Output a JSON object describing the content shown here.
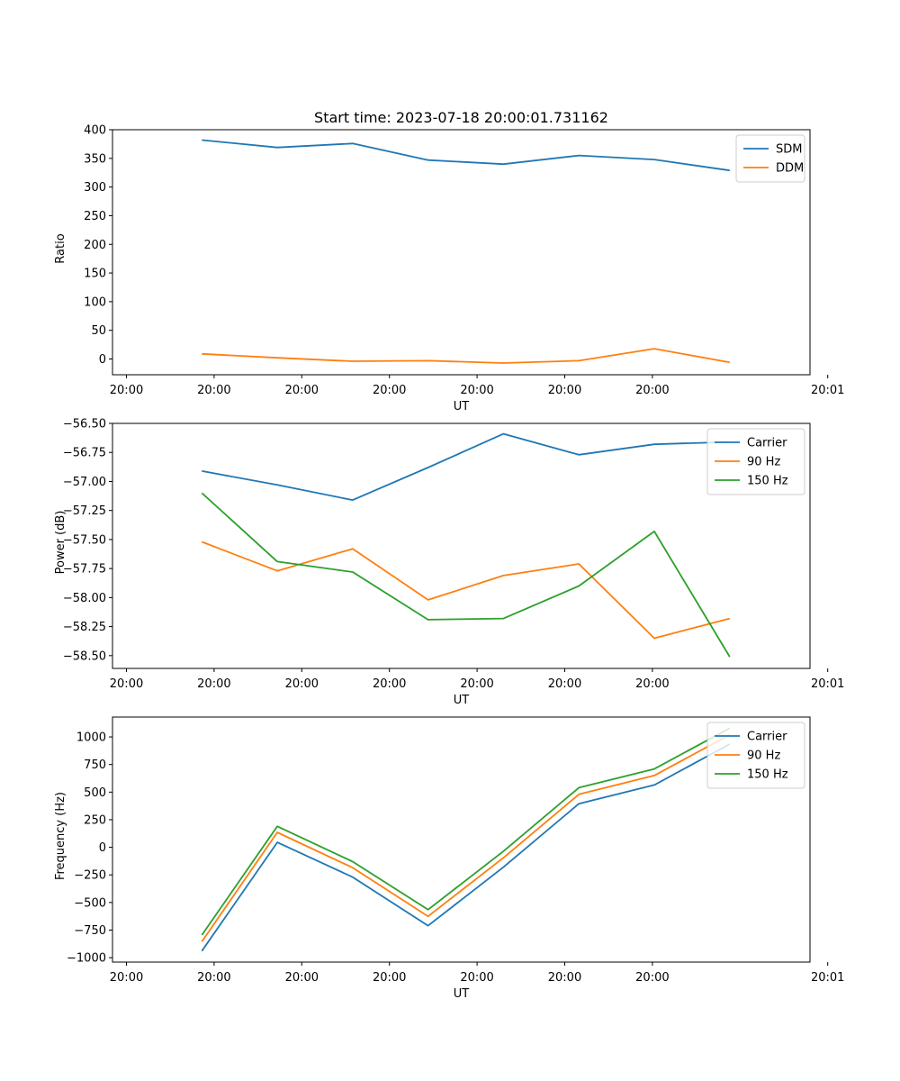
{
  "chart_data": [
    {
      "type": "line",
      "title": "Start time: 2023-07-18 20:00:01.731162",
      "xlabel": "UT",
      "ylabel": "Ratio",
      "x_tick_labels": [
        "20:00",
        "20:00",
        "20:00",
        "20:00",
        "20:00",
        "20:00",
        "20:00",
        "20:01"
      ],
      "x": [
        1,
        2,
        3,
        4,
        5,
        6,
        7,
        8
      ],
      "xlim": [
        -0.185,
        9.065
      ],
      "ylim": [
        -27.5,
        400
      ],
      "yticks": [
        0,
        50,
        100,
        150,
        200,
        250,
        300,
        350,
        400
      ],
      "legend": "top-right",
      "series": [
        {
          "name": "SDM",
          "color": "#1f77b4",
          "values": [
            382,
            369,
            376,
            347,
            340,
            355,
            348,
            329
          ]
        },
        {
          "name": "DDM",
          "color": "#ff7f0e",
          "values": [
            9,
            2,
            -4,
            -3,
            -7,
            -3,
            18,
            -6
          ]
        }
      ]
    },
    {
      "type": "line",
      "title": "",
      "xlabel": "UT",
      "ylabel": "Power (dB)",
      "x_tick_labels": [
        "20:00",
        "20:00",
        "20:00",
        "20:00",
        "20:00",
        "20:00",
        "20:00",
        "20:01"
      ],
      "x": [
        1,
        2,
        3,
        4,
        5,
        6,
        7,
        8
      ],
      "xlim": [
        -0.185,
        9.065
      ],
      "ylim": [
        -58.61,
        -56.5
      ],
      "yticks": [
        -58.5,
        -58.25,
        -58.0,
        -57.75,
        -57.5,
        -57.25,
        -57.0,
        -56.75,
        -56.5
      ],
      "ytick_labels": [
        "−58.50",
        "−58.25",
        "−58.00",
        "−57.75",
        "−57.50",
        "−57.25",
        "−57.00",
        "−56.75",
        "−56.50"
      ],
      "legend": "top-right",
      "series": [
        {
          "name": "Carrier",
          "color": "#1f77b4",
          "values": [
            -56.91,
            -57.03,
            -57.16,
            -56.88,
            -56.59,
            -56.77,
            -56.68,
            -56.66
          ]
        },
        {
          "name": "90 Hz",
          "color": "#ff7f0e",
          "values": [
            -57.52,
            -57.77,
            -57.58,
            -58.02,
            -57.81,
            -57.71,
            -58.35,
            -58.18
          ]
        },
        {
          "name": "150 Hz",
          "color": "#2ca02c",
          "values": [
            -57.1,
            -57.69,
            -57.78,
            -58.19,
            -58.18,
            -57.9,
            -57.43,
            -58.51
          ]
        }
      ]
    },
    {
      "type": "line",
      "title": "",
      "xlabel": "UT",
      "ylabel": "Frequency (Hz)",
      "x_tick_labels": [
        "20:00",
        "20:00",
        "20:00",
        "20:00",
        "20:00",
        "20:00",
        "20:00",
        "20:01"
      ],
      "x": [
        1,
        2,
        3,
        4,
        5,
        6,
        7,
        8
      ],
      "xlim": [
        -0.185,
        9.065
      ],
      "ylim": [
        -1040,
        1180
      ],
      "yticks": [
        -1000,
        -750,
        -500,
        -250,
        0,
        250,
        500,
        750,
        1000
      ],
      "ytick_labels": [
        "−1000",
        "−750",
        "−500",
        "−250",
        "0",
        "250",
        "500",
        "750",
        "1000"
      ],
      "legend": "top-right",
      "series": [
        {
          "name": "Carrier",
          "color": "#1f77b4",
          "values": [
            -940,
            45,
            -270,
            -710,
            -180,
            395,
            565,
            935
          ]
        },
        {
          "name": "90 Hz",
          "color": "#ff7f0e",
          "values": [
            -855,
            135,
            -185,
            -625,
            -95,
            480,
            650,
            1020
          ]
        },
        {
          "name": "150 Hz",
          "color": "#2ca02c",
          "values": [
            -795,
            190,
            -130,
            -565,
            -35,
            540,
            710,
            1080
          ]
        }
      ]
    }
  ]
}
